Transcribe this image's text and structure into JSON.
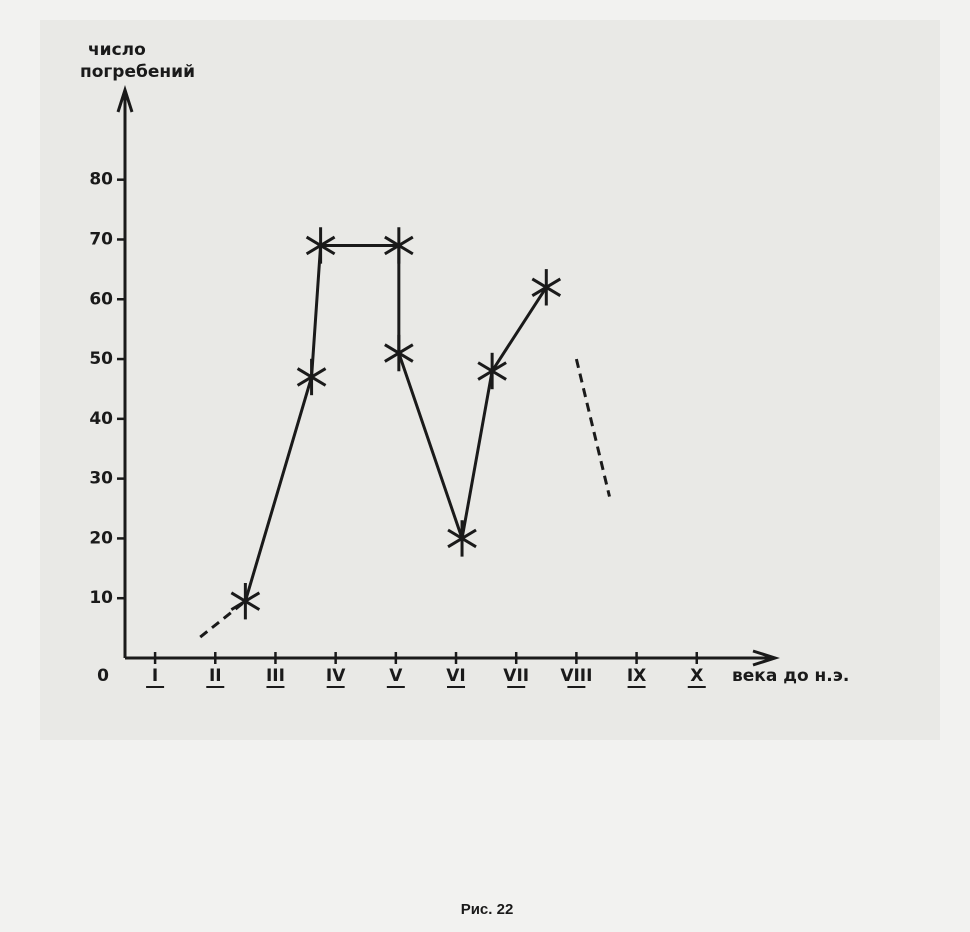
{
  "chart_data": {
    "type": "line",
    "y_label_lines": [
      "число",
      "погребений"
    ],
    "x_label": "века до н.э.",
    "origin_label": "0",
    "caption": "Рис. 22",
    "xlim": [
      0.5,
      11.3
    ],
    "xticks": [
      {
        "value": 1,
        "label": "I"
      },
      {
        "value": 2,
        "label": "II"
      },
      {
        "value": 3,
        "label": "III"
      },
      {
        "value": 4,
        "label": "IV"
      },
      {
        "value": 5,
        "label": "V"
      },
      {
        "value": 6,
        "label": "VI"
      },
      {
        "value": 7,
        "label": "VII"
      },
      {
        "value": 8,
        "label": "VIII"
      },
      {
        "value": 9,
        "label": "IX"
      },
      {
        "value": 10,
        "label": "X"
      }
    ],
    "ylim": [
      0,
      95
    ],
    "yticks": [
      10,
      20,
      30,
      40,
      50,
      60,
      70,
      80
    ],
    "series": [
      {
        "color": "#1a1a1a",
        "style": "solid",
        "markers": true,
        "x": [
          2.5,
          3.6,
          3.75,
          5.05,
          5.05,
          6.1,
          6.6,
          7.5
        ],
        "values": [
          9.5,
          47,
          69,
          69,
          51,
          20,
          48,
          62
        ]
      },
      {
        "color": "#1a1a1a",
        "style": "dashed",
        "markers": false,
        "x": [
          1.75,
          2.5
        ],
        "values": [
          3.5,
          9.5
        ]
      },
      {
        "color": "#1a1a1a",
        "style": "dashed",
        "markers": false,
        "x": [
          8.0,
          8.55
        ],
        "values": [
          50,
          27
        ]
      }
    ]
  }
}
